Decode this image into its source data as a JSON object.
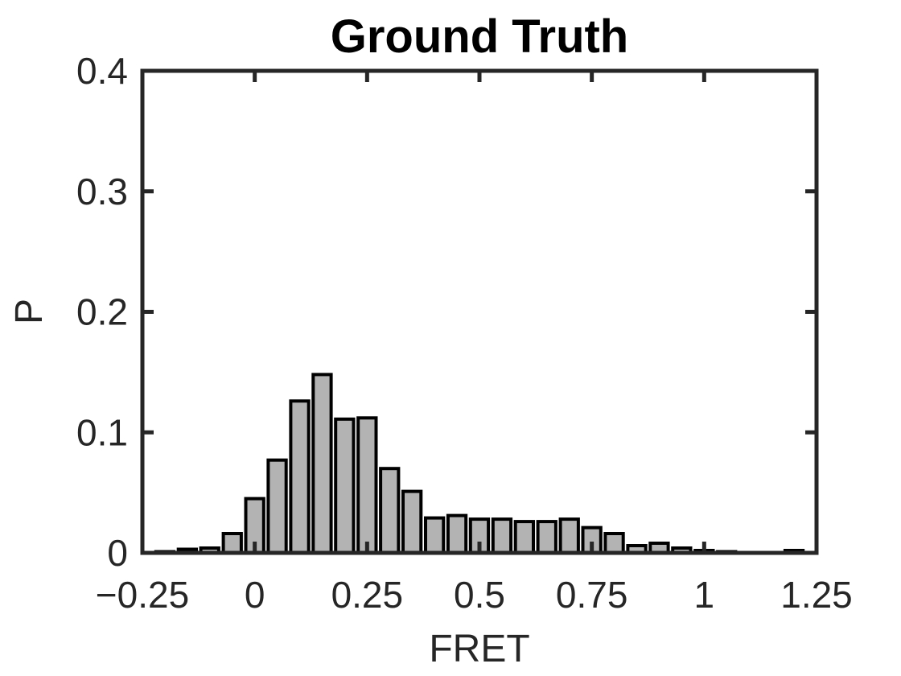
{
  "chart_data": {
    "type": "bar",
    "title": "Ground Truth",
    "xlabel": "FRET",
    "ylabel": "P",
    "xlim": [
      -0.25,
      1.25
    ],
    "ylim": [
      0,
      0.4
    ],
    "xticks": [
      -0.25,
      0,
      0.25,
      0.5,
      0.75,
      1,
      1.25
    ],
    "xtick_labels": [
      "−0.25",
      "0",
      "0.25",
      "0.5",
      "0.75",
      "1",
      "1.25"
    ],
    "yticks": [
      0,
      0.1,
      0.2,
      0.3,
      0.4
    ],
    "ytick_labels": [
      "0",
      "0.1",
      "0.2",
      "0.3",
      "0.4"
    ],
    "grid": false,
    "bar_width": 0.04,
    "x": [
      -0.2,
      -0.15,
      -0.1,
      -0.05,
      0.0,
      0.05,
      0.1,
      0.15,
      0.2,
      0.25,
      0.3,
      0.35,
      0.4,
      0.45,
      0.5,
      0.55,
      0.6,
      0.65,
      0.7,
      0.75,
      0.8,
      0.85,
      0.9,
      0.95,
      1.0,
      1.05,
      1.1,
      1.15,
      1.2
    ],
    "values": [
      0.001,
      0.003,
      0.004,
      0.016,
      0.045,
      0.077,
      0.126,
      0.148,
      0.111,
      0.112,
      0.07,
      0.051,
      0.029,
      0.031,
      0.028,
      0.028,
      0.026,
      0.026,
      0.028,
      0.021,
      0.016,
      0.006,
      0.008,
      0.004,
      0.002,
      0.001,
      0.0,
      0.0,
      0.002
    ],
    "bar_fill": "#b3b3b3",
    "bar_edge": "#000000",
    "axes_color": "#262626"
  }
}
